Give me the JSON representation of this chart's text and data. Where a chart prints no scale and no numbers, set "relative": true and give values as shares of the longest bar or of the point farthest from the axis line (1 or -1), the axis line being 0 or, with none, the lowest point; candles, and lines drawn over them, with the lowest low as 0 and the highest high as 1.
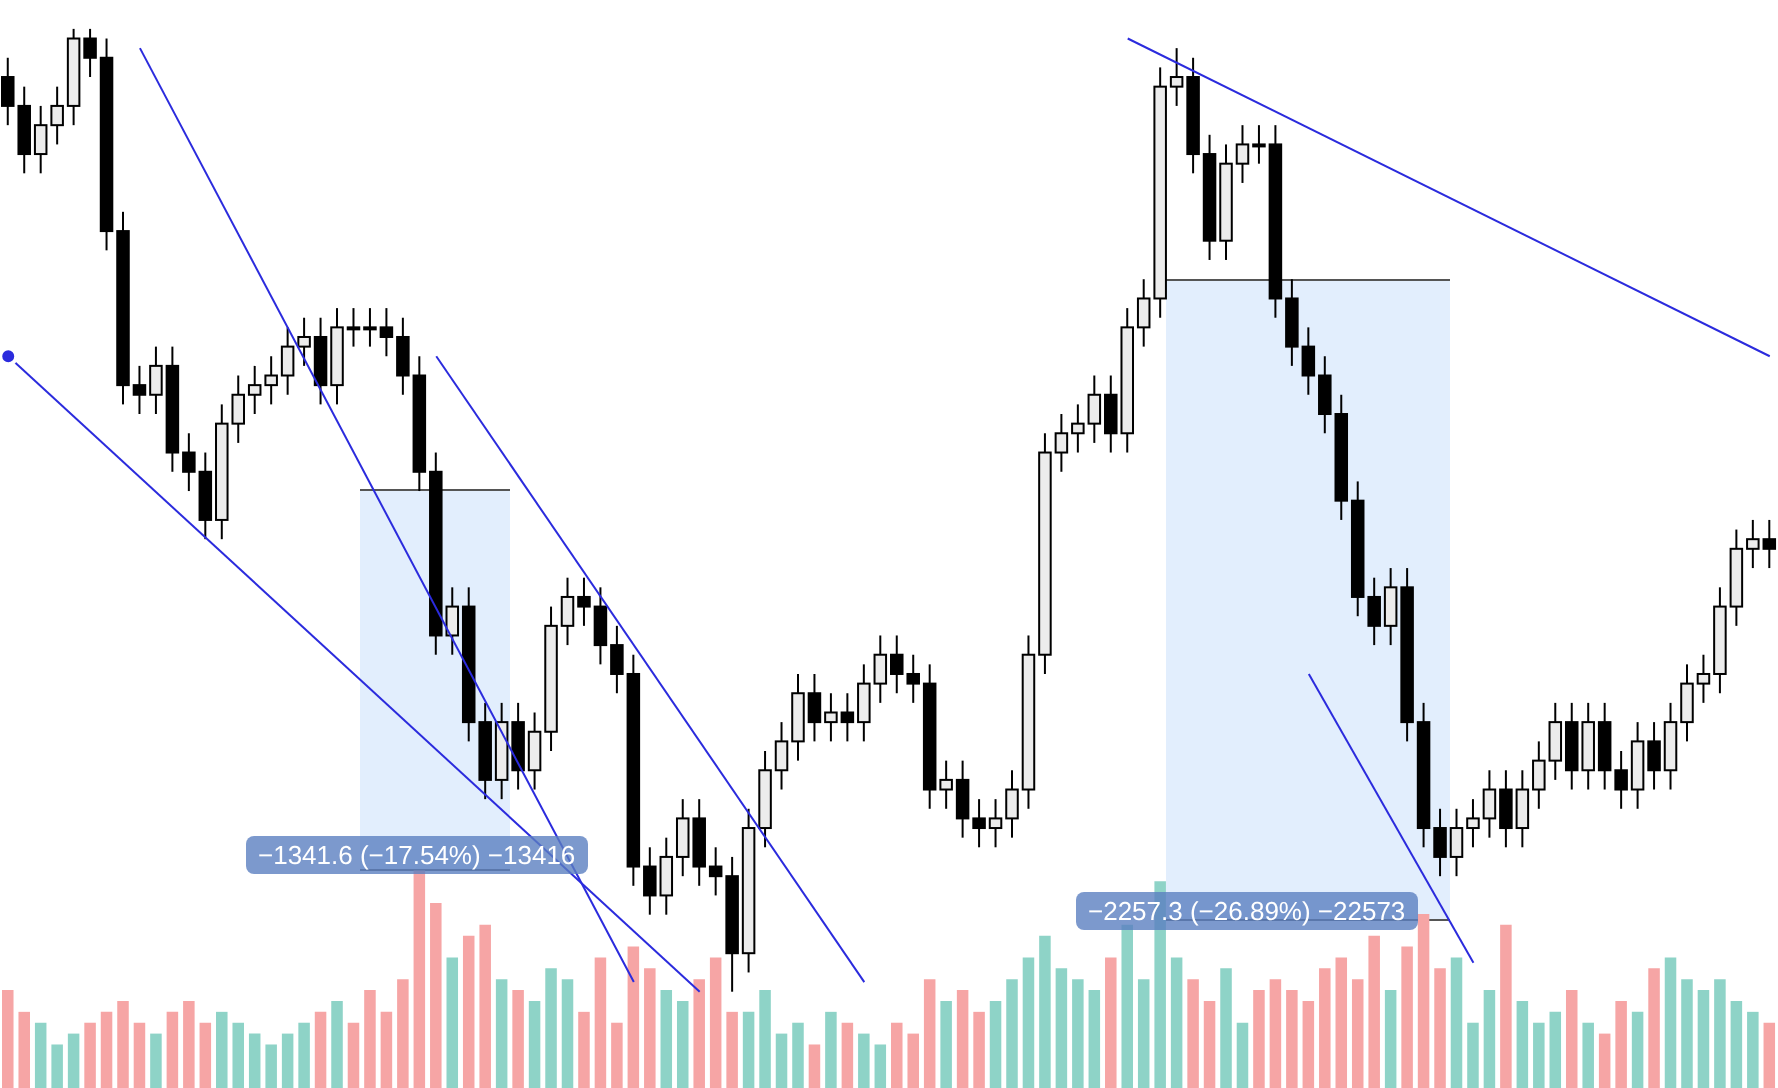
{
  "chart_data": [
    {
      "type": "candlestick",
      "relative": true,
      "categories": [
        null,
        null,
        null,
        null,
        null,
        null,
        null,
        null,
        null,
        null,
        null,
        null,
        null,
        null,
        null,
        null,
        null,
        null,
        null,
        null,
        null,
        null,
        null,
        null,
        null,
        null,
        null,
        null,
        null,
        null,
        null,
        null,
        null,
        null,
        null,
        null,
        null,
        null,
        null,
        null,
        null,
        null,
        null,
        null,
        null,
        null,
        null,
        null,
        null,
        null,
        null,
        null,
        null,
        null,
        null,
        null,
        null,
        null,
        null,
        null,
        null,
        null,
        null,
        null,
        null,
        null,
        null,
        null,
        null,
        null,
        null,
        null,
        null,
        null,
        null,
        null,
        null,
        null,
        null,
        null,
        null,
        null,
        null,
        null,
        null,
        null,
        null,
        null,
        null,
        null,
        null,
        null,
        null,
        null,
        null,
        null,
        null,
        null,
        null,
        null,
        null,
        null,
        null,
        null,
        null,
        null,
        null,
        null
      ],
      "ohlc": [
        [
          0.95,
          0.97,
          0.9,
          0.92
        ],
        [
          0.92,
          0.94,
          0.85,
          0.87
        ],
        [
          0.87,
          0.92,
          0.85,
          0.9
        ],
        [
          0.9,
          0.94,
          0.88,
          0.92
        ],
        [
          0.92,
          1.0,
          0.9,
          0.99
        ],
        [
          0.99,
          1.0,
          0.95,
          0.97
        ],
        [
          0.97,
          0.99,
          0.77,
          0.79
        ],
        [
          0.79,
          0.81,
          0.61,
          0.63
        ],
        [
          0.63,
          0.65,
          0.6,
          0.62
        ],
        [
          0.62,
          0.67,
          0.6,
          0.65
        ],
        [
          0.65,
          0.67,
          0.54,
          0.56
        ],
        [
          0.56,
          0.58,
          0.52,
          0.54
        ],
        [
          0.54,
          0.56,
          0.47,
          0.49
        ],
        [
          0.49,
          0.61,
          0.47,
          0.59
        ],
        [
          0.59,
          0.64,
          0.57,
          0.62
        ],
        [
          0.62,
          0.65,
          0.6,
          0.63
        ],
        [
          0.63,
          0.66,
          0.61,
          0.64
        ],
        [
          0.64,
          0.69,
          0.62,
          0.67
        ],
        [
          0.67,
          0.7,
          0.65,
          0.68
        ],
        [
          0.68,
          0.7,
          0.61,
          0.63
        ],
        [
          0.63,
          0.71,
          0.61,
          0.69
        ],
        [
          0.69,
          0.71,
          0.67,
          0.69
        ],
        [
          0.69,
          0.71,
          0.67,
          0.69
        ],
        [
          0.69,
          0.71,
          0.66,
          0.68
        ],
        [
          0.68,
          0.7,
          0.62,
          0.64
        ],
        [
          0.64,
          0.66,
          0.52,
          0.54
        ],
        [
          0.54,
          0.56,
          0.35,
          0.37
        ],
        [
          0.37,
          0.42,
          0.35,
          0.4
        ],
        [
          0.4,
          0.42,
          0.26,
          0.28
        ],
        [
          0.28,
          0.3,
          0.2,
          0.22
        ],
        [
          0.22,
          0.3,
          0.2,
          0.28
        ],
        [
          0.28,
          0.3,
          0.21,
          0.23
        ],
        [
          0.23,
          0.29,
          0.21,
          0.27
        ],
        [
          0.27,
          0.4,
          0.25,
          0.38
        ],
        [
          0.38,
          0.43,
          0.36,
          0.41
        ],
        [
          0.41,
          0.43,
          0.38,
          0.4
        ],
        [
          0.4,
          0.42,
          0.34,
          0.36
        ],
        [
          0.36,
          0.38,
          0.31,
          0.33
        ],
        [
          0.33,
          0.35,
          0.11,
          0.13
        ],
        [
          0.13,
          0.15,
          0.08,
          0.1
        ],
        [
          0.1,
          0.16,
          0.08,
          0.14
        ],
        [
          0.14,
          0.2,
          0.12,
          0.18
        ],
        [
          0.18,
          0.2,
          0.11,
          0.13
        ],
        [
          0.13,
          0.15,
          0.1,
          0.12
        ],
        [
          0.12,
          0.14,
          0.0,
          0.04
        ],
        [
          0.04,
          0.19,
          0.02,
          0.17
        ],
        [
          0.17,
          0.25,
          0.15,
          0.23
        ],
        [
          0.23,
          0.28,
          0.21,
          0.26
        ],
        [
          0.26,
          0.33,
          0.24,
          0.31
        ],
        [
          0.31,
          0.33,
          0.26,
          0.28
        ],
        [
          0.28,
          0.31,
          0.26,
          0.29
        ],
        [
          0.29,
          0.31,
          0.26,
          0.28
        ],
        [
          0.28,
          0.34,
          0.26,
          0.32
        ],
        [
          0.32,
          0.37,
          0.3,
          0.35
        ],
        [
          0.35,
          0.37,
          0.31,
          0.33
        ],
        [
          0.33,
          0.35,
          0.3,
          0.32
        ],
        [
          0.32,
          0.34,
          0.19,
          0.21
        ],
        [
          0.21,
          0.24,
          0.19,
          0.22
        ],
        [
          0.22,
          0.24,
          0.16,
          0.18
        ],
        [
          0.18,
          0.2,
          0.15,
          0.17
        ],
        [
          0.17,
          0.2,
          0.15,
          0.18
        ],
        [
          0.18,
          0.23,
          0.16,
          0.21
        ],
        [
          0.21,
          0.37,
          0.19,
          0.35
        ],
        [
          0.35,
          0.58,
          0.33,
          0.56
        ],
        [
          0.56,
          0.6,
          0.54,
          0.58
        ],
        [
          0.58,
          0.61,
          0.56,
          0.59
        ],
        [
          0.59,
          0.64,
          0.57,
          0.62
        ],
        [
          0.62,
          0.64,
          0.56,
          0.58
        ],
        [
          0.58,
          0.71,
          0.56,
          0.69
        ],
        [
          0.69,
          0.74,
          0.67,
          0.72
        ],
        [
          0.72,
          0.96,
          0.7,
          0.94
        ],
        [
          0.94,
          0.98,
          0.92,
          0.95
        ],
        [
          0.95,
          0.97,
          0.85,
          0.87
        ],
        [
          0.87,
          0.89,
          0.76,
          0.78
        ],
        [
          0.78,
          0.88,
          0.76,
          0.86
        ],
        [
          0.86,
          0.9,
          0.84,
          0.88
        ],
        [
          0.88,
          0.9,
          0.86,
          0.88
        ],
        [
          0.88,
          0.9,
          0.7,
          0.72
        ],
        [
          0.72,
          0.74,
          0.65,
          0.67
        ],
        [
          0.67,
          0.69,
          0.62,
          0.64
        ],
        [
          0.64,
          0.66,
          0.58,
          0.6
        ],
        [
          0.6,
          0.62,
          0.49,
          0.51
        ],
        [
          0.51,
          0.53,
          0.39,
          0.41
        ],
        [
          0.41,
          0.43,
          0.36,
          0.38
        ],
        [
          0.38,
          0.44,
          0.36,
          0.42
        ],
        [
          0.42,
          0.44,
          0.26,
          0.28
        ],
        [
          0.28,
          0.3,
          0.15,
          0.17
        ],
        [
          0.17,
          0.19,
          0.12,
          0.14
        ],
        [
          0.14,
          0.19,
          0.12,
          0.17
        ],
        [
          0.17,
          0.2,
          0.15,
          0.18
        ],
        [
          0.18,
          0.23,
          0.16,
          0.21
        ],
        [
          0.21,
          0.23,
          0.15,
          0.17
        ],
        [
          0.17,
          0.23,
          0.15,
          0.21
        ],
        [
          0.21,
          0.26,
          0.19,
          0.24
        ],
        [
          0.24,
          0.3,
          0.22,
          0.28
        ],
        [
          0.28,
          0.3,
          0.21,
          0.23
        ],
        [
          0.23,
          0.3,
          0.21,
          0.28
        ],
        [
          0.28,
          0.3,
          0.21,
          0.23
        ],
        [
          0.23,
          0.25,
          0.19,
          0.21
        ],
        [
          0.21,
          0.28,
          0.19,
          0.26
        ],
        [
          0.26,
          0.28,
          0.21,
          0.23
        ],
        [
          0.23,
          0.3,
          0.21,
          0.28
        ],
        [
          0.28,
          0.34,
          0.26,
          0.32
        ],
        [
          0.32,
          0.35,
          0.3,
          0.33
        ],
        [
          0.33,
          0.42,
          0.31,
          0.4
        ],
        [
          0.4,
          0.48,
          0.38,
          0.46
        ],
        [
          0.46,
          0.49,
          0.44,
          0.47
        ],
        [
          0.47,
          0.49,
          0.44,
          0.46
        ]
      ],
      "series": [
        {
          "type": "line",
          "color": "#2b2bdd",
          "values": [
            null,
            null,
            null,
            null,
            null,
            null,
            null,
            null,
            0.98,
            null,
            null,
            null,
            null,
            null,
            null,
            null,
            null,
            null,
            null,
            null,
            null,
            null,
            null,
            null,
            null,
            null,
            null,
            null,
            null,
            null,
            null,
            null,
            null,
            null,
            null,
            null,
            null,
            null,
            0.01,
            null,
            null,
            null,
            null,
            null,
            null,
            null,
            null,
            null,
            null,
            null,
            null,
            null,
            null,
            null,
            null,
            null,
            null,
            null,
            null,
            null,
            null,
            null,
            null,
            null,
            null,
            null,
            null,
            null,
            null,
            null,
            null,
            null,
            null,
            null,
            null,
            null,
            null,
            null,
            null,
            null,
            null,
            null,
            null,
            null,
            null,
            null,
            null,
            null,
            null,
            null,
            null,
            null,
            null,
            null,
            null,
            null,
            null,
            null,
            null,
            null,
            null,
            null,
            null,
            null,
            null,
            null,
            null,
            null
          ]
        },
        {
          "type": "line",
          "color": "#2b2bdd",
          "values": [
            0.66,
            null,
            null,
            null,
            null,
            null,
            null,
            null,
            null,
            null,
            null,
            null,
            null,
            null,
            null,
            null,
            null,
            null,
            null,
            null,
            null,
            null,
            null,
            null,
            null,
            null,
            null,
            null,
            null,
            null,
            null,
            null,
            null,
            null,
            null,
            null,
            null,
            null,
            null,
            null,
            null,
            null,
            0.0,
            null,
            null,
            null,
            null,
            null,
            null,
            null,
            null,
            null,
            null,
            null,
            null,
            null,
            null,
            null,
            null,
            null,
            null,
            null,
            null,
            null,
            null,
            null,
            null,
            null,
            null,
            null,
            null,
            null,
            null,
            null,
            null,
            null,
            null,
            null,
            null,
            null,
            null,
            null,
            null,
            null,
            null,
            null,
            null,
            null,
            null,
            null,
            null,
            null,
            null,
            null,
            null,
            null,
            null,
            null,
            null,
            null,
            null,
            null,
            null,
            null,
            null,
            null,
            null,
            null
          ]
        },
        {
          "type": "line",
          "color": "#2b2bdd",
          "values": [
            null,
            null,
            null,
            null,
            null,
            null,
            null,
            null,
            null,
            null,
            null,
            null,
            null,
            null,
            null,
            null,
            null,
            null,
            null,
            null,
            null,
            null,
            null,
            null,
            null,
            null,
            0.66,
            null,
            null,
            null,
            null,
            null,
            null,
            null,
            null,
            null,
            null,
            null,
            null,
            null,
            null,
            null,
            null,
            null,
            null,
            null,
            null,
            null,
            null,
            null,
            null,
            null,
            0.01,
            null,
            null,
            null,
            null,
            null,
            null,
            null,
            null,
            null,
            null,
            null,
            null,
            null,
            null,
            null,
            null,
            null,
            null,
            null,
            null,
            null,
            null,
            null,
            null,
            null,
            null,
            null,
            null,
            null,
            null,
            null,
            null,
            null,
            null,
            null,
            null,
            null,
            null,
            null,
            null,
            null,
            null,
            null,
            null,
            null,
            null,
            null,
            null,
            null,
            null,
            null,
            null,
            null,
            null,
            null
          ]
        },
        {
          "type": "line",
          "color": "#2b2bdd",
          "values": [
            null,
            null,
            null,
            null,
            null,
            null,
            null,
            null,
            null,
            null,
            null,
            null,
            null,
            null,
            null,
            null,
            null,
            null,
            null,
            null,
            null,
            null,
            null,
            null,
            null,
            null,
            null,
            null,
            null,
            null,
            null,
            null,
            null,
            null,
            null,
            null,
            null,
            null,
            null,
            null,
            null,
            null,
            null,
            null,
            null,
            null,
            null,
            null,
            null,
            null,
            null,
            null,
            null,
            null,
            null,
            null,
            null,
            null,
            null,
            null,
            null,
            null,
            null,
            null,
            null,
            null,
            null,
            null,
            0.99,
            null,
            null,
            null,
            null,
            null,
            null,
            null,
            null,
            null,
            null,
            null,
            null,
            null,
            null,
            null,
            null,
            null,
            null,
            null,
            null,
            null,
            null,
            null,
            null,
            null,
            null,
            null,
            null,
            null,
            null,
            null,
            null,
            null,
            null,
            null,
            null,
            null,
            null,
            0.66
          ]
        },
        {
          "type": "line",
          "color": "#2b2bdd",
          "values": [
            null,
            null,
            null,
            null,
            null,
            null,
            null,
            null,
            null,
            null,
            null,
            null,
            null,
            null,
            null,
            null,
            null,
            null,
            null,
            null,
            null,
            null,
            null,
            null,
            null,
            null,
            null,
            null,
            null,
            null,
            null,
            null,
            null,
            null,
            null,
            null,
            null,
            null,
            null,
            null,
            null,
            null,
            null,
            null,
            null,
            null,
            null,
            null,
            null,
            null,
            null,
            null,
            null,
            null,
            null,
            null,
            null,
            null,
            null,
            null,
            null,
            null,
            null,
            null,
            null,
            null,
            null,
            null,
            null,
            null,
            null,
            null,
            null,
            null,
            null,
            null,
            null,
            null,
            null,
            0.33,
            null,
            null,
            null,
            null,
            null,
            null,
            null,
            null,
            null,
            0.03,
            null,
            null,
            null,
            null,
            null,
            null,
            null,
            null,
            null,
            null,
            null,
            null,
            null,
            null,
            null,
            null,
            null,
            null
          ]
        }
      ],
      "annotations": [
        "−1341.6 (−17.54%) −13416",
        "−2257.3 (−26.89%) −22573"
      ]
    },
    {
      "type": "bar",
      "relative": true,
      "categories": [
        null,
        null,
        null,
        null,
        null,
        null,
        null,
        null,
        null,
        null,
        null,
        null,
        null,
        null,
        null,
        null,
        null,
        null,
        null,
        null,
        null,
        null,
        null,
        null,
        null,
        null,
        null,
        null,
        null,
        null,
        null,
        null,
        null,
        null,
        null,
        null,
        null,
        null,
        null,
        null,
        null,
        null,
        null,
        null,
        null,
        null,
        null,
        null,
        null,
        null,
        null,
        null,
        null,
        null,
        null,
        null,
        null,
        null,
        null,
        null,
        null,
        null,
        null,
        null,
        null,
        null,
        null,
        null,
        null,
        null,
        null,
        null,
        null,
        null,
        null,
        null,
        null,
        null,
        null,
        null,
        null,
        null,
        null,
        null,
        null,
        null,
        null,
        null,
        null,
        null,
        null,
        null,
        null,
        null,
        null,
        null,
        null,
        null,
        null,
        null,
        null,
        null,
        null,
        null,
        null,
        null,
        null,
        null
      ],
      "values": [
        0.45,
        0.35,
        0.3,
        0.2,
        0.25,
        0.3,
        0.35,
        0.4,
        0.3,
        0.25,
        0.35,
        0.4,
        0.3,
        0.35,
        0.3,
        0.25,
        0.2,
        0.25,
        0.3,
        0.35,
        0.4,
        0.3,
        0.45,
        0.35,
        0.5,
        1.0,
        0.85,
        0.6,
        0.7,
        0.75,
        0.5,
        0.45,
        0.4,
        0.55,
        0.5,
        0.35,
        0.6,
        0.3,
        0.65,
        0.55,
        0.45,
        0.4,
        0.5,
        0.6,
        0.35,
        0.35,
        0.45,
        0.25,
        0.3,
        0.2,
        0.35,
        0.3,
        0.25,
        0.2,
        0.3,
        0.25,
        0.5,
        0.4,
        0.45,
        0.35,
        0.4,
        0.5,
        0.6,
        0.7,
        0.55,
        0.5,
        0.45,
        0.6,
        0.75,
        0.5,
        0.95,
        0.6,
        0.5,
        0.4,
        0.55,
        0.3,
        0.45,
        0.5,
        0.45,
        0.4,
        0.55,
        0.6,
        0.5,
        0.7,
        0.45,
        0.65,
        0.8,
        0.55,
        0.6,
        0.3,
        0.45,
        0.75,
        0.4,
        0.3,
        0.35,
        0.45,
        0.3,
        0.25,
        0.4,
        0.35,
        0.55,
        0.6,
        0.5,
        0.45,
        0.5,
        0.4,
        0.35,
        0.3
      ],
      "colors": [
        "#f6a5a5",
        "#f6a5a5",
        "#8ed3c7",
        "#8ed3c7",
        "#8ed3c7",
        "#f6a5a5",
        "#f6a5a5",
        "#f6a5a5",
        "#f6a5a5",
        "#8ed3c7",
        "#f6a5a5",
        "#f6a5a5",
        "#f6a5a5",
        "#8ed3c7",
        "#8ed3c7",
        "#8ed3c7",
        "#8ed3c7",
        "#8ed3c7",
        "#8ed3c7",
        "#f6a5a5",
        "#8ed3c7",
        "#f6a5a5",
        "#f6a5a5",
        "#f6a5a5",
        "#f6a5a5",
        "#f6a5a5",
        "#f6a5a5",
        "#8ed3c7",
        "#f6a5a5",
        "#f6a5a5",
        "#8ed3c7",
        "#f6a5a5",
        "#8ed3c7",
        "#8ed3c7",
        "#8ed3c7",
        "#f6a5a5",
        "#f6a5a5",
        "#f6a5a5",
        "#f6a5a5",
        "#f6a5a5",
        "#8ed3c7",
        "#8ed3c7",
        "#f6a5a5",
        "#f6a5a5",
        "#f6a5a5",
        "#8ed3c7",
        "#8ed3c7",
        "#8ed3c7",
        "#8ed3c7",
        "#f6a5a5",
        "#8ed3c7",
        "#f6a5a5",
        "#8ed3c7",
        "#8ed3c7",
        "#f6a5a5",
        "#f6a5a5",
        "#f6a5a5",
        "#8ed3c7",
        "#f6a5a5",
        "#f6a5a5",
        "#8ed3c7",
        "#8ed3c7",
        "#8ed3c7",
        "#8ed3c7",
        "#8ed3c7",
        "#8ed3c7",
        "#8ed3c7",
        "#f6a5a5",
        "#8ed3c7",
        "#8ed3c7",
        "#8ed3c7",
        "#8ed3c7",
        "#f6a5a5",
        "#f6a5a5",
        "#8ed3c7",
        "#8ed3c7",
        "#f6a5a5",
        "#f6a5a5",
        "#f6a5a5",
        "#f6a5a5",
        "#f6a5a5",
        "#f6a5a5",
        "#f6a5a5",
        "#f6a5a5",
        "#8ed3c7",
        "#f6a5a5",
        "#f6a5a5",
        "#f6a5a5",
        "#8ed3c7",
        "#8ed3c7",
        "#8ed3c7",
        "#f6a5a5",
        "#8ed3c7",
        "#8ed3c7",
        "#8ed3c7",
        "#f6a5a5",
        "#8ed3c7",
        "#f6a5a5",
        "#f6a5a5",
        "#8ed3c7",
        "#f6a5a5",
        "#8ed3c7",
        "#8ed3c7",
        "#8ed3c7",
        "#8ed3c7",
        "#8ed3c7",
        "#8ed3c7",
        "#f6a5a5"
      ]
    }
  ]
}
